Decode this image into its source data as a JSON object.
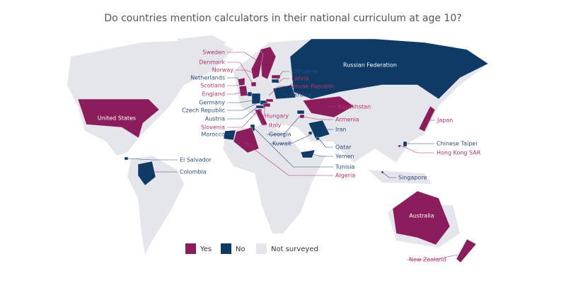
{
  "title": "Do countries mention calculators in their national curriculum at age 10?",
  "legend": [
    {
      "label": "Yes",
      "color": "#8b1d5c"
    },
    {
      "label": "No",
      "color": "#0f3a66"
    },
    {
      "label": "Not surveyed",
      "color": "#e5e5ec"
    }
  ],
  "countries": [
    {
      "name": "Sweden",
      "answer": "Yes"
    },
    {
      "name": "Denmark",
      "answer": "Yes"
    },
    {
      "name": "Norway",
      "answer": "Yes"
    },
    {
      "name": "Netherlands",
      "answer": "No"
    },
    {
      "name": "Scotland",
      "answer": "Yes"
    },
    {
      "name": "England",
      "answer": "Yes"
    },
    {
      "name": "Germany",
      "answer": "No"
    },
    {
      "name": "Czech Republic",
      "answer": "No"
    },
    {
      "name": "Austria",
      "answer": "No"
    },
    {
      "name": "Slovenia",
      "answer": "Yes"
    },
    {
      "name": "Morocco",
      "answer": "No"
    },
    {
      "name": "Lithuania",
      "answer": "No"
    },
    {
      "name": "Latvia",
      "answer": "Yes"
    },
    {
      "name": "Slovak Republic",
      "answer": "Yes"
    },
    {
      "name": "Ukraine",
      "answer": "No"
    },
    {
      "name": "Russian Federation",
      "answer": "No"
    },
    {
      "name": "Hungary",
      "answer": "Yes"
    },
    {
      "name": "Italy",
      "answer": "Yes"
    },
    {
      "name": "Georgia",
      "answer": "No"
    },
    {
      "name": "Kuwait",
      "answer": "No"
    },
    {
      "name": "Kazakhstan",
      "answer": "Yes"
    },
    {
      "name": "Armenia",
      "answer": "Yes"
    },
    {
      "name": "Iran",
      "answer": "No"
    },
    {
      "name": "Qatar",
      "answer": "No"
    },
    {
      "name": "Yemen",
      "answer": "No"
    },
    {
      "name": "Tunisia",
      "answer": "No"
    },
    {
      "name": "Algeria",
      "answer": "Yes"
    },
    {
      "name": "Japan",
      "answer": "Yes"
    },
    {
      "name": "Chinese Taipei",
      "answer": "No"
    },
    {
      "name": "Hong Kong SAR",
      "answer": "Yes"
    },
    {
      "name": "Singapore",
      "answer": "No"
    },
    {
      "name": "El Salvador",
      "answer": "No"
    },
    {
      "name": "Colombia",
      "answer": "No"
    },
    {
      "name": "United States",
      "answer": "Yes"
    },
    {
      "name": "Australia",
      "answer": "Yes"
    },
    {
      "name": "New Zealand",
      "answer": "Yes"
    }
  ]
}
